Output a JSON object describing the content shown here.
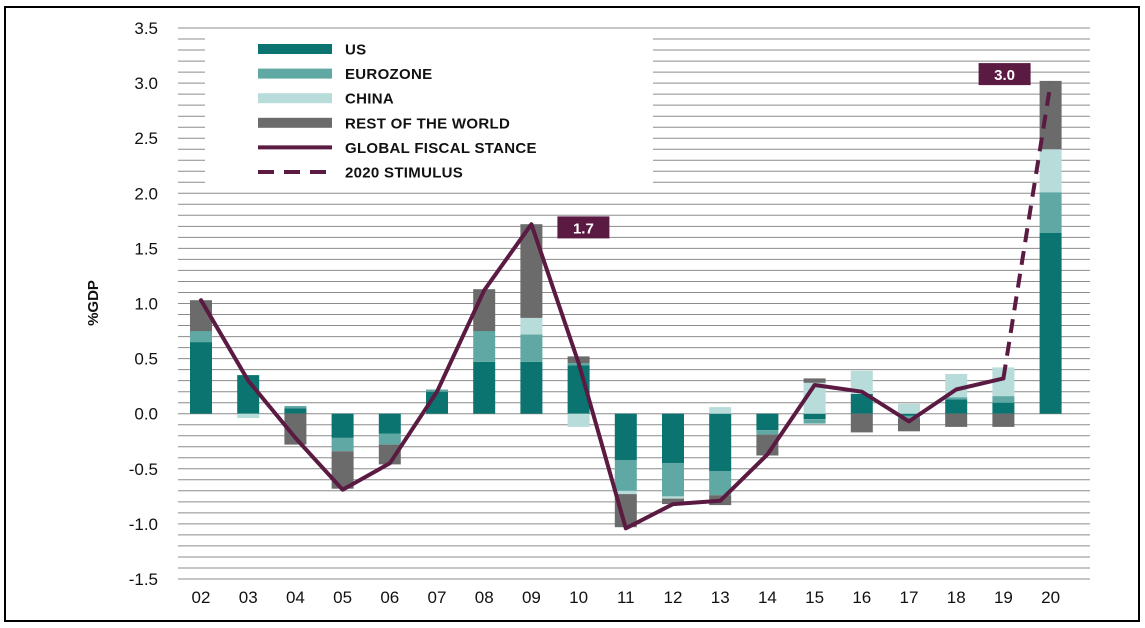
{
  "chart_data": {
    "type": "bar",
    "stacked": true,
    "ylabel": "%GDP",
    "ylim": [
      -1.5,
      3.5
    ],
    "yticks": [
      "3.5",
      "3.0",
      "2.5",
      "2.0",
      "1.5",
      "1.0",
      "0.5",
      "0.0",
      "-0.5",
      "-1.0",
      "-1.5"
    ],
    "ytick_values": [
      3.5,
      3.0,
      2.5,
      2.0,
      1.5,
      1.0,
      0.5,
      0.0,
      -0.5,
      -1.0,
      -1.5
    ],
    "grid": true,
    "legend_position": "top-left",
    "categories": [
      "02",
      "03",
      "04",
      "05",
      "06",
      "07",
      "08",
      "09",
      "10",
      "11",
      "12",
      "13",
      "14",
      "15",
      "16",
      "17",
      "18",
      "19",
      "20"
    ],
    "series": [
      {
        "name": "US",
        "color": "#0b7470",
        "values": [
          0.65,
          0.35,
          0.05,
          -0.22,
          -0.18,
          0.2,
          0.47,
          0.47,
          0.44,
          -0.42,
          -0.45,
          -0.52,
          -0.15,
          -0.05,
          0.18,
          -0.02,
          0.13,
          0.1,
          1.64
        ]
      },
      {
        "name": "EUROZONE",
        "color": "#5fa8a4",
        "values": [
          0.1,
          0.0,
          0.02,
          -0.12,
          -0.1,
          0.02,
          0.28,
          0.25,
          0.02,
          -0.28,
          -0.3,
          -0.22,
          -0.04,
          -0.04,
          0.0,
          -0.02,
          0.02,
          0.06,
          0.37
        ]
      },
      {
        "name": "CHINA",
        "color": "#b8dcda",
        "values": [
          0.0,
          -0.04,
          0.0,
          0.0,
          0.0,
          0.0,
          0.0,
          0.15,
          -0.12,
          -0.03,
          -0.02,
          0.06,
          0.0,
          0.28,
          0.21,
          0.09,
          0.21,
          0.26,
          0.39
        ]
      },
      {
        "name": "REST OF THE WORLD",
        "color": "#6b6b6b",
        "values": [
          0.28,
          0.0,
          -0.28,
          -0.34,
          -0.18,
          0.0,
          0.38,
          0.85,
          0.06,
          -0.3,
          -0.05,
          -0.09,
          -0.19,
          0.04,
          -0.17,
          -0.12,
          -0.12,
          -0.12,
          0.62
        ]
      }
    ],
    "lines": [
      {
        "name": "GLOBAL FISCAL STANCE",
        "color": "#5b1a42",
        "style": "solid",
        "x": [
          "02",
          "03",
          "04",
          "05",
          "06",
          "07",
          "08",
          "09",
          "10",
          "11",
          "12",
          "13",
          "14",
          "15",
          "16",
          "17",
          "18",
          "19"
        ],
        "values": [
          1.03,
          0.3,
          -0.22,
          -0.69,
          -0.45,
          0.2,
          1.12,
          1.72,
          0.46,
          -1.04,
          -0.82,
          -0.79,
          -0.37,
          0.26,
          0.2,
          -0.07,
          0.22,
          0.32
        ]
      },
      {
        "name": "2020 STIMULUS",
        "color": "#5b1a42",
        "style": "dashed",
        "x": [
          "19",
          "20"
        ],
        "values": [
          0.32,
          3.0
        ]
      }
    ],
    "annotations": [
      {
        "label": "1.7",
        "x": "09",
        "value": 1.7
      },
      {
        "label": "3.0",
        "x": "20",
        "value": 3.0
      }
    ]
  }
}
